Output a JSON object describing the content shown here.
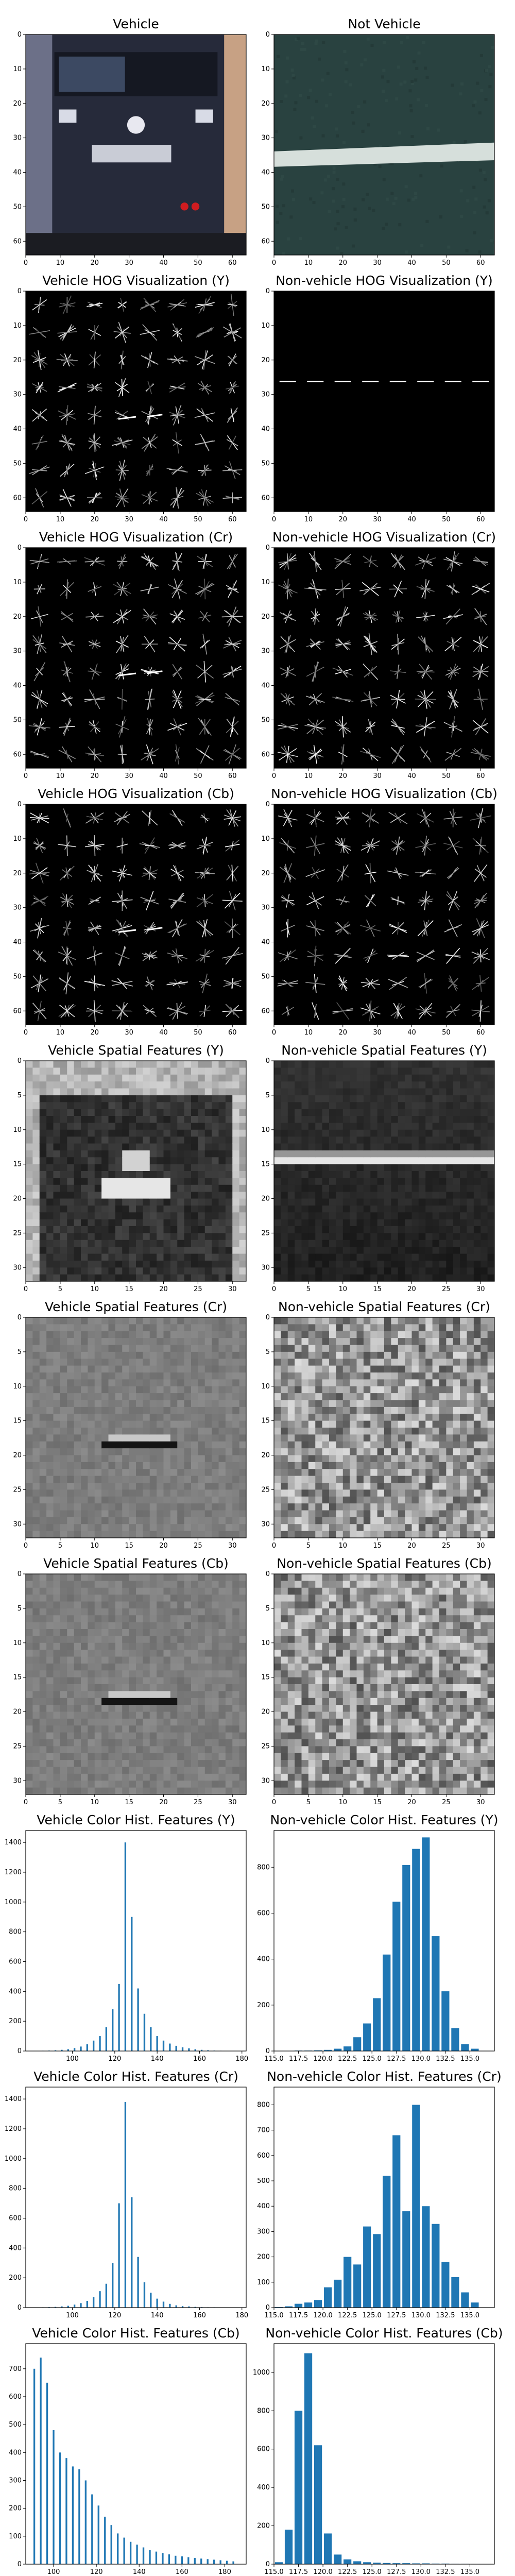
{
  "colors": {
    "bar": "#1f77b4",
    "frame": "#000000",
    "background": "#ffffff"
  },
  "chart_data": [
    {
      "type": "image",
      "title": "Vehicle",
      "content": "vehicle-rear-photo",
      "xticks": [
        "0",
        "10",
        "20",
        "30",
        "40",
        "50",
        "60"
      ],
      "yticks": [
        "0",
        "10",
        "20",
        "30",
        "40",
        "50",
        "60"
      ],
      "xlim": [
        0,
        64
      ],
      "ylim": [
        64,
        0
      ]
    },
    {
      "type": "image",
      "title": "Not Vehicle",
      "content": "road-surface-photo",
      "xticks": [
        "0",
        "10",
        "20",
        "30",
        "40",
        "50",
        "60"
      ],
      "yticks": [
        "0",
        "10",
        "20",
        "30",
        "40",
        "50",
        "60"
      ],
      "xlim": [
        0,
        64
      ],
      "ylim": [
        64,
        0
      ]
    },
    {
      "type": "image",
      "title": "Vehicle HOG Visualization (Y)",
      "content": "hog",
      "xticks": [
        "0",
        "10",
        "20",
        "30",
        "40",
        "50",
        "60"
      ],
      "yticks": [
        "0",
        "10",
        "20",
        "30",
        "40",
        "50",
        "60"
      ],
      "xlim": [
        0,
        64
      ],
      "ylim": [
        64,
        0
      ]
    },
    {
      "type": "image",
      "title": "Non-vehicle HOG Visualization (Y)",
      "content": "hog",
      "xticks": [
        "0",
        "10",
        "20",
        "30",
        "40",
        "50",
        "60"
      ],
      "yticks": [
        "0",
        "10",
        "20",
        "30",
        "40",
        "50",
        "60"
      ],
      "xlim": [
        0,
        64
      ],
      "ylim": [
        64,
        0
      ]
    },
    {
      "type": "image",
      "title": "Vehicle HOG Visualization (Cr)",
      "content": "hog",
      "xticks": [
        "0",
        "10",
        "20",
        "30",
        "40",
        "50",
        "60"
      ],
      "yticks": [
        "0",
        "10",
        "20",
        "30",
        "40",
        "50",
        "60"
      ],
      "xlim": [
        0,
        64
      ],
      "ylim": [
        64,
        0
      ]
    },
    {
      "type": "image",
      "title": "Non-vehicle HOG Visualization (Cr)",
      "content": "hog",
      "xticks": [
        "0",
        "10",
        "20",
        "30",
        "40",
        "50",
        "60"
      ],
      "yticks": [
        "0",
        "10",
        "20",
        "30",
        "40",
        "50",
        "60"
      ],
      "xlim": [
        0,
        64
      ],
      "ylim": [
        64,
        0
      ]
    },
    {
      "type": "image",
      "title": "Vehicle HOG Visualization (Cb)",
      "content": "hog",
      "xticks": [
        "0",
        "10",
        "20",
        "30",
        "40",
        "50",
        "60"
      ],
      "yticks": [
        "0",
        "10",
        "20",
        "30",
        "40",
        "50",
        "60"
      ],
      "xlim": [
        0,
        64
      ],
      "ylim": [
        64,
        0
      ]
    },
    {
      "type": "image",
      "title": "Non-vehicle HOG Visualization (Cb)",
      "content": "hog",
      "xticks": [
        "0",
        "10",
        "20",
        "30",
        "40",
        "50",
        "60"
      ],
      "yticks": [
        "0",
        "10",
        "20",
        "30",
        "40",
        "50",
        "60"
      ],
      "xlim": [
        0,
        64
      ],
      "ylim": [
        64,
        0
      ]
    },
    {
      "type": "image",
      "title": "Vehicle Spatial Features (Y)",
      "content": "spatial",
      "xticks": [
        "0",
        "5",
        "10",
        "15",
        "20",
        "25",
        "30"
      ],
      "yticks": [
        "0",
        "5",
        "10",
        "15",
        "20",
        "25",
        "30"
      ],
      "xlim": [
        0,
        32
      ],
      "ylim": [
        32,
        0
      ]
    },
    {
      "type": "image",
      "title": "Non-vehicle Spatial Features (Y)",
      "content": "spatial",
      "xticks": [
        "0",
        "5",
        "10",
        "15",
        "20",
        "25",
        "30"
      ],
      "yticks": [
        "0",
        "5",
        "10",
        "15",
        "20",
        "25",
        "30"
      ],
      "xlim": [
        0,
        32
      ],
      "ylim": [
        32,
        0
      ]
    },
    {
      "type": "image",
      "title": "Vehicle Spatial Features (Cr)",
      "content": "spatial",
      "xticks": [
        "0",
        "5",
        "10",
        "15",
        "20",
        "25",
        "30"
      ],
      "yticks": [
        "0",
        "5",
        "10",
        "15",
        "20",
        "25",
        "30"
      ],
      "xlim": [
        0,
        32
      ],
      "ylim": [
        32,
        0
      ]
    },
    {
      "type": "image",
      "title": "Non-vehicle Spatial Features (Cr)",
      "content": "spatial",
      "xticks": [
        "0",
        "5",
        "10",
        "15",
        "20",
        "25",
        "30"
      ],
      "yticks": [
        "0",
        "5",
        "10",
        "15",
        "20",
        "25",
        "30"
      ],
      "xlim": [
        0,
        32
      ],
      "ylim": [
        32,
        0
      ]
    },
    {
      "type": "image",
      "title": "Vehicle Spatial Features (Cb)",
      "content": "spatial",
      "xticks": [
        "0",
        "5",
        "10",
        "15",
        "20",
        "25",
        "30"
      ],
      "yticks": [
        "0",
        "5",
        "10",
        "15",
        "20",
        "25",
        "30"
      ],
      "xlim": [
        0,
        32
      ],
      "ylim": [
        32,
        0
      ]
    },
    {
      "type": "image",
      "title": "Non-vehicle Spatial Features (Cb)",
      "content": "spatial",
      "xticks": [
        "0",
        "5",
        "10",
        "15",
        "20",
        "25",
        "30"
      ],
      "yticks": [
        "0",
        "5",
        "10",
        "15",
        "20",
        "25",
        "30"
      ],
      "xlim": [
        0,
        32
      ],
      "ylim": [
        32,
        0
      ]
    },
    {
      "type": "bar",
      "title": "Vehicle Color Hist. Features (Y)",
      "xlim": [
        78,
        182
      ],
      "ylim": [
        0,
        1480
      ],
      "xticks": [
        100,
        120,
        140,
        160,
        180
      ],
      "xtick_labels": [
        "100",
        "120",
        "140",
        "160",
        "180"
      ],
      "yticks": [
        0,
        200,
        400,
        600,
        800,
        1000,
        1200,
        1400
      ],
      "bar_width": 0.8,
      "x": [
        86,
        89,
        92,
        95,
        98,
        101,
        104,
        107,
        110,
        113,
        116,
        119,
        122,
        125,
        128,
        131,
        134,
        137,
        140,
        143,
        146,
        149,
        152,
        155,
        158,
        161,
        164,
        167,
        170,
        173
      ],
      "values": [
        2,
        3,
        5,
        8,
        12,
        20,
        30,
        45,
        70,
        100,
        160,
        280,
        450,
        1400,
        900,
        420,
        250,
        160,
        100,
        70,
        50,
        35,
        25,
        18,
        12,
        8,
        5,
        3,
        2,
        1
      ]
    },
    {
      "type": "bar",
      "title": "Non-vehicle Color Hist. Features (Y)",
      "xlim": [
        115,
        137.5
      ],
      "ylim": [
        0,
        960
      ],
      "xticks": [
        115,
        117.5,
        120,
        122.5,
        125,
        127.5,
        130,
        132.5,
        135
      ],
      "xtick_labels": [
        "115.0",
        "117.5",
        "120.0",
        "122.5",
        "125.0",
        "127.5",
        "130.0",
        "132.5",
        "135.0"
      ],
      "yticks": [
        0,
        200,
        400,
        600,
        800
      ],
      "bar_width": 0.8,
      "x": [
        115.5,
        116.5,
        117.5,
        118.5,
        119.5,
        120.5,
        121.5,
        122.5,
        123.5,
        124.5,
        125.5,
        126.5,
        127.5,
        128.5,
        129.5,
        130.5,
        131.5,
        132.5,
        133.5,
        134.5,
        135.5
      ],
      "values": [
        1,
        1,
        2,
        2,
        3,
        5,
        10,
        20,
        60,
        120,
        230,
        420,
        650,
        810,
        880,
        930,
        500,
        260,
        100,
        30,
        10
      ]
    },
    {
      "type": "bar",
      "title": "Vehicle Color Hist. Features (Cr)",
      "xlim": [
        78,
        182
      ],
      "ylim": [
        0,
        1480
      ],
      "xticks": [
        100,
        120,
        140,
        160,
        180
      ],
      "xtick_labels": [
        "100",
        "120",
        "140",
        "160",
        "180"
      ],
      "yticks": [
        0,
        200,
        400,
        600,
        800,
        1000,
        1200,
        1400
      ],
      "bar_width": 0.8,
      "x": [
        86,
        89,
        92,
        95,
        98,
        101,
        104,
        107,
        110,
        113,
        116,
        119,
        122,
        125,
        128,
        131,
        134,
        137,
        140,
        143,
        146,
        149,
        152,
        155,
        158,
        161,
        164,
        167,
        170,
        173
      ],
      "values": [
        2,
        3,
        5,
        8,
        12,
        20,
        30,
        45,
        70,
        110,
        160,
        300,
        700,
        1380,
        740,
        340,
        170,
        100,
        60,
        40,
        25,
        15,
        10,
        8,
        5,
        3,
        2,
        2,
        1,
        1
      ]
    },
    {
      "type": "bar",
      "title": "Non-vehicle Color Hist. Features (Cr)",
      "xlim": [
        115,
        137.5
      ],
      "ylim": [
        0,
        870
      ],
      "xticks": [
        115,
        117.5,
        120,
        122.5,
        125,
        127.5,
        130,
        132.5,
        135
      ],
      "xtick_labels": [
        "115.0",
        "117.5",
        "120.0",
        "122.5",
        "125.0",
        "127.5",
        "130.0",
        "132.5",
        "135.0"
      ],
      "yticks": [
        0,
        100,
        200,
        300,
        400,
        500,
        600,
        700,
        800
      ],
      "bar_width": 0.8,
      "x": [
        115.5,
        116.5,
        117.5,
        118.5,
        119.5,
        120.5,
        121.5,
        122.5,
        123.5,
        124.5,
        125.5,
        126.5,
        127.5,
        128.5,
        129.5,
        130.5,
        131.5,
        132.5,
        133.5,
        134.5,
        135.5
      ],
      "values": [
        2,
        5,
        15,
        20,
        30,
        80,
        110,
        200,
        170,
        320,
        290,
        520,
        680,
        380,
        800,
        400,
        330,
        180,
        120,
        60,
        20
      ]
    },
    {
      "type": "bar",
      "title": "Vehicle Color Hist. Features (Cb)",
      "xlim": [
        87,
        190
      ],
      "ylim": [
        0,
        790
      ],
      "xticks": [
        100,
        120,
        140,
        160,
        180
      ],
      "xtick_labels": [
        "100",
        "120",
        "140",
        "160",
        "180"
      ],
      "yticks": [
        0,
        100,
        200,
        300,
        400,
        500,
        600,
        700
      ],
      "bar_width": 0.8,
      "x": [
        91,
        94,
        97,
        100,
        103,
        106,
        109,
        112,
        115,
        118,
        121,
        124,
        127,
        130,
        133,
        136,
        139,
        142,
        145,
        148,
        151,
        154,
        157,
        160,
        163,
        166,
        169,
        172,
        175,
        178,
        181,
        184
      ],
      "values": [
        700,
        740,
        650,
        480,
        400,
        380,
        350,
        340,
        300,
        250,
        210,
        170,
        140,
        110,
        95,
        80,
        70,
        60,
        50,
        45,
        40,
        35,
        30,
        28,
        25,
        22,
        20,
        18,
        16,
        14,
        12,
        10
      ]
    },
    {
      "type": "bar",
      "title": "Non-vehicle Color Hist. Features (Cb)",
      "xlim": [
        115,
        137.5
      ],
      "ylim": [
        0,
        1150
      ],
      "xticks": [
        115,
        117.5,
        120,
        122.5,
        125,
        127.5,
        130,
        132.5,
        135
      ],
      "xtick_labels": [
        "115.0",
        "117.5",
        "120.0",
        "122.5",
        "125.0",
        "127.5",
        "130.0",
        "132.5",
        "135.0"
      ],
      "yticks": [
        0,
        200,
        400,
        600,
        800,
        1000
      ],
      "bar_width": 0.8,
      "x": [
        115.5,
        116.5,
        117.5,
        118.5,
        119.5,
        120.5,
        121.5,
        122.5,
        123.5,
        124.5,
        125.5,
        126.5,
        127.5,
        128.5,
        129.5,
        130.5,
        131.5,
        132.5,
        133.5,
        134.5
      ],
      "values": [
        10,
        180,
        800,
        1100,
        620,
        160,
        50,
        25,
        15,
        10,
        8,
        6,
        5,
        5,
        4,
        4,
        3,
        3,
        2,
        2
      ]
    }
  ]
}
